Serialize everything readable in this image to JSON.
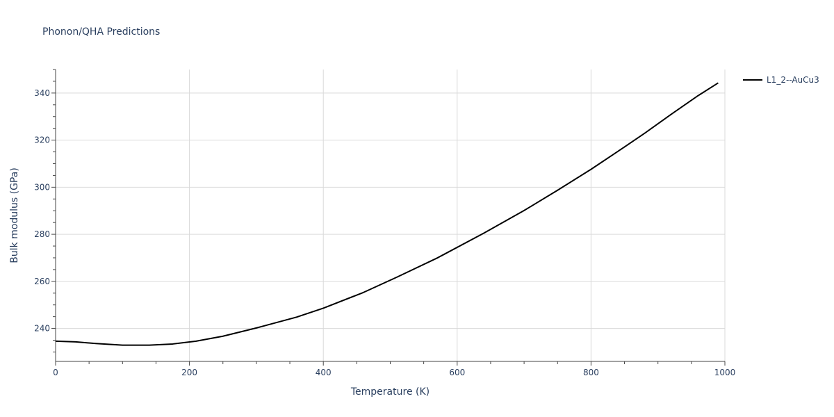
{
  "chart_data": {
    "type": "line",
    "title": "Phonon/QHA Predictions",
    "xlabel": "Temperature (K)",
    "ylabel": "Bulk modulus (GPa)",
    "xlim": [
      0,
      1000
    ],
    "ylim": [
      226,
      350
    ],
    "x_ticks": [
      0,
      200,
      400,
      600,
      800,
      1000
    ],
    "y_ticks": [
      240,
      260,
      280,
      300,
      320,
      340
    ],
    "x_minor_step": 50,
    "y_minor_step": 5,
    "grid": true,
    "legend_position": "top-right, outside plot",
    "series": [
      {
        "name": "L1_2--AuCu3",
        "color": "#000000",
        "x": [
          0,
          30,
          60,
          100,
          140,
          175,
          210,
          250,
          300,
          360,
          400,
          460,
          510,
          570,
          640,
          700,
          750,
          800,
          850,
          880,
          920,
          960,
          990
        ],
        "y": [
          234.6,
          234.3,
          233.6,
          232.9,
          232.9,
          233.4,
          234.6,
          236.7,
          240.2,
          244.8,
          248.6,
          255.3,
          261.8,
          269.9,
          280.5,
          290.1,
          298.7,
          307.6,
          317.1,
          322.9,
          331.0,
          338.9,
          344.3
        ]
      }
    ]
  }
}
